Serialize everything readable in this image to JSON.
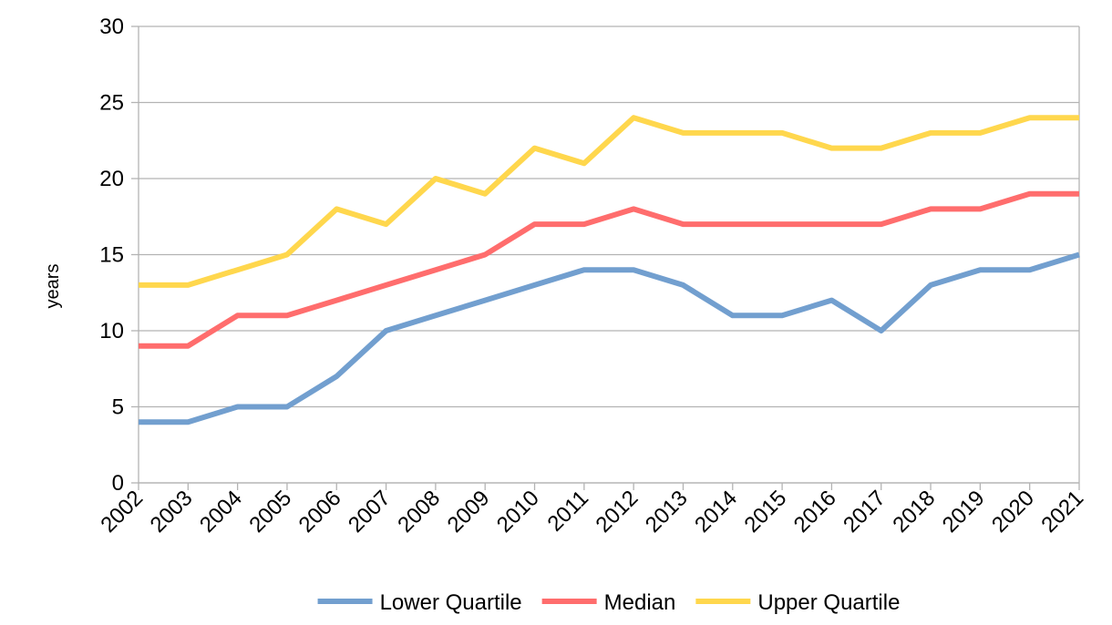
{
  "chart_data": {
    "type": "line",
    "title": "",
    "xlabel": "",
    "ylabel": "years",
    "ylim": [
      0,
      30
    ],
    "y_ticks": [
      0,
      5,
      10,
      15,
      20,
      25,
      30
    ],
    "grid": true,
    "legend_position": "bottom",
    "categories": [
      "2002",
      "2003",
      "2004",
      "2005",
      "2006",
      "2007",
      "2008",
      "2009",
      "2010",
      "2011",
      "2012",
      "2013",
      "2014",
      "2015",
      "2016",
      "2017",
      "2018",
      "2019",
      "2020",
      "2021"
    ],
    "series": [
      {
        "name": "Lower Quartile",
        "color": "#729fcf",
        "values": [
          4,
          4,
          5,
          5,
          7,
          10,
          11,
          12,
          13,
          14,
          14,
          13,
          11,
          11,
          12,
          10,
          13,
          14,
          14,
          15
        ]
      },
      {
        "name": "Median",
        "color": "#ff6d6d",
        "values": [
          9,
          9,
          11,
          11,
          12,
          13,
          14,
          15,
          17,
          17,
          18,
          17,
          17,
          17,
          17,
          17,
          18,
          18,
          19,
          19
        ]
      },
      {
        "name": "Upper Quartile",
        "color": "#ffd74d",
        "values": [
          13,
          13,
          14,
          15,
          18,
          17,
          20,
          19,
          22,
          21,
          24,
          23,
          23,
          23,
          22,
          22,
          23,
          23,
          24,
          24
        ]
      }
    ]
  }
}
